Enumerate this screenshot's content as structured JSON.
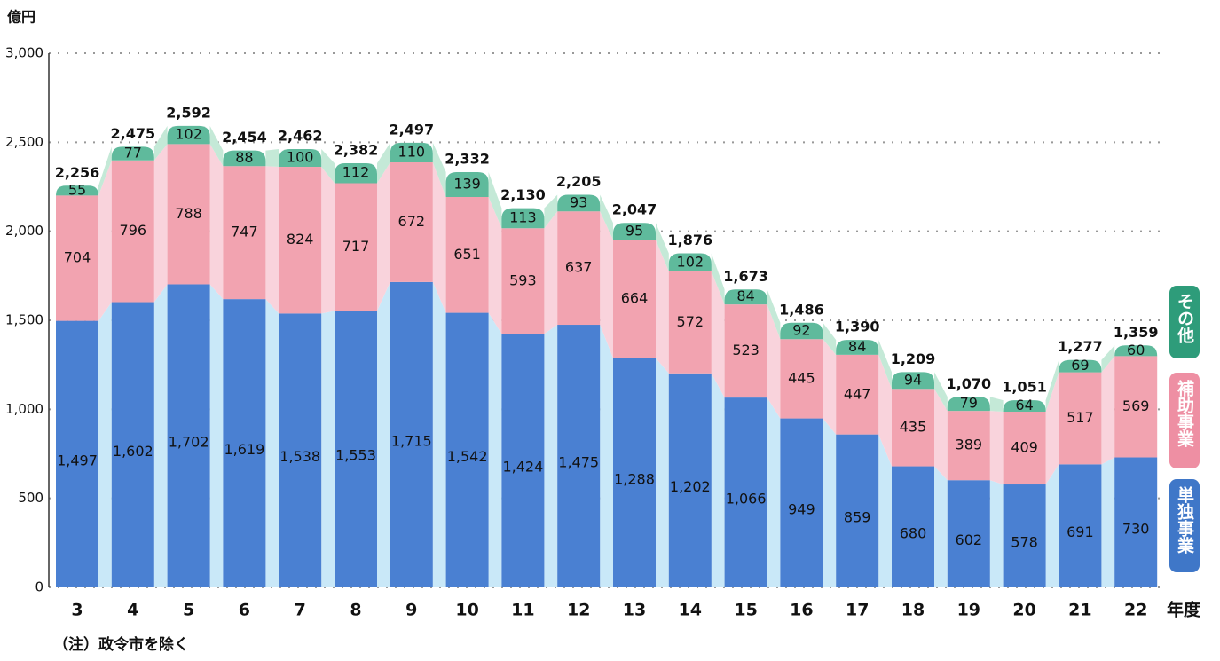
{
  "chart_data": {
    "type": "stacked_bar",
    "y_unit": "億円",
    "x_unit": "年度",
    "note": "（注）政令市を除く",
    "categories": [
      "3",
      "4",
      "5",
      "6",
      "7",
      "8",
      "9",
      "10",
      "11",
      "12",
      "13",
      "14",
      "15",
      "16",
      "17",
      "18",
      "19",
      "20",
      "21",
      "22"
    ],
    "series": [
      {
        "name": "単独事業",
        "color": "#4a80d2",
        "area_color": "#c9e8f8",
        "values": [
          1497,
          1602,
          1702,
          1619,
          1538,
          1553,
          1715,
          1542,
          1424,
          1475,
          1288,
          1202,
          1066,
          949,
          859,
          680,
          602,
          578,
          691,
          730
        ],
        "value_labels": [
          "1,497",
          "1,602",
          "1,702",
          "1,619",
          "1,538",
          "1,553",
          "1,715",
          "1,542",
          "1,424",
          "1,475",
          "1,288",
          "1,202",
          "1,066",
          "949",
          "859",
          "680",
          "602",
          "578",
          "691",
          "730"
        ]
      },
      {
        "name": "補助事業",
        "color": "#f2a3b0",
        "area_color": "#f9d3dc",
        "values": [
          704,
          796,
          788,
          747,
          824,
          717,
          672,
          651,
          593,
          637,
          664,
          572,
          523,
          445,
          447,
          435,
          389,
          409,
          517,
          569
        ]
      },
      {
        "name": "その他",
        "color": "#5fba9c",
        "area_color": "#c4e9d7",
        "values": [
          55,
          77,
          102,
          88,
          100,
          112,
          110,
          139,
          113,
          93,
          95,
          102,
          84,
          92,
          84,
          94,
          79,
          64,
          69,
          60
        ]
      }
    ],
    "totals": [
      2256,
      2475,
      2592,
      2454,
      2462,
      2382,
      2497,
      2332,
      2130,
      2205,
      2047,
      1876,
      1673,
      1486,
      1390,
      1209,
      1070,
      1051,
      1277,
      1359
    ],
    "total_labels": [
      "2,256",
      "2,475",
      "2,592",
      "2,454",
      "2,462",
      "2,382",
      "2,497",
      "2,332",
      "2,130",
      "2,205",
      "2,047",
      "1,876",
      "1,673",
      "1,486",
      "1,390",
      "1,209",
      "1,070",
      "1,051",
      "1,277",
      "1,359"
    ],
    "legend_colors": [
      "#3f77c8",
      "#ee8fa3",
      "#2e9c7a"
    ],
    "ylim": [
      0,
      3000
    ],
    "yticks": [
      0,
      500,
      {
        "value": 1000,
        "label": "1,000"
      },
      {
        "value": 1500,
        "label": "1,500"
      },
      {
        "value": 2000,
        "label": "2,000"
      },
      {
        "value": 2500,
        "label": "2,500"
      },
      {
        "value": 3000,
        "label": "3,000"
      }
    ],
    "grid": true
  }
}
